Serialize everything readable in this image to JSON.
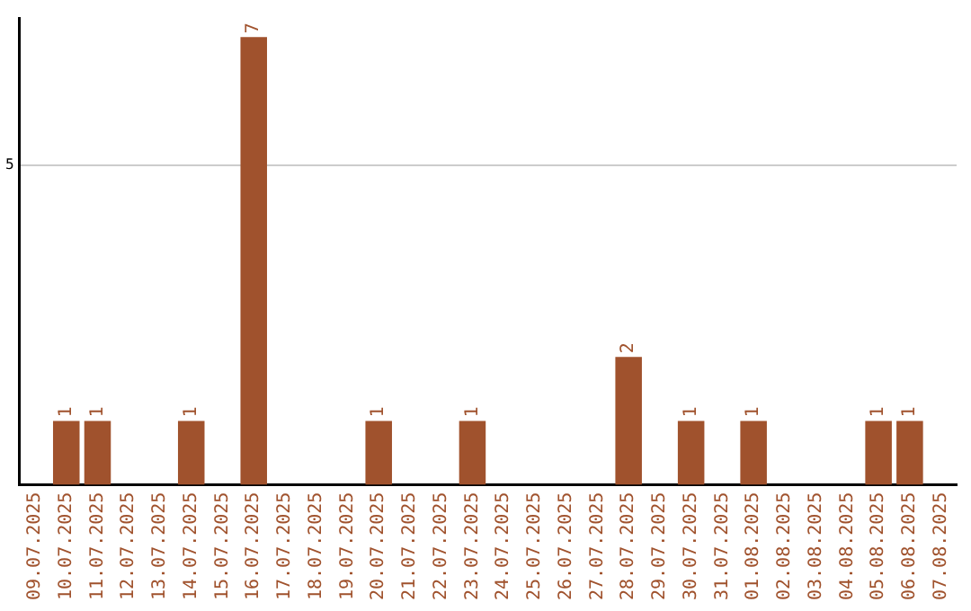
{
  "chart_data": {
    "type": "bar",
    "categories": [
      "09.07.2025",
      "10.07.2025",
      "11.07.2025",
      "12.07.2025",
      "13.07.2025",
      "14.07.2025",
      "15.07.2025",
      "16.07.2025",
      "17.07.2025",
      "18.07.2025",
      "19.07.2025",
      "20.07.2025",
      "21.07.2025",
      "22.07.2025",
      "23.07.2025",
      "24.07.2025",
      "25.07.2025",
      "26.07.2025",
      "27.07.2025",
      "28.07.2025",
      "29.07.2025",
      "30.07.2025",
      "31.07.2025",
      "01.08.2025",
      "02.08.2025",
      "03.08.2025",
      "04.08.2025",
      "05.08.2025",
      "06.08.2025",
      "07.08.2025"
    ],
    "values": [
      0,
      1,
      1,
      0,
      0,
      1,
      0,
      7,
      0,
      0,
      0,
      1,
      0,
      0,
      1,
      0,
      0,
      0,
      0,
      2,
      0,
      1,
      0,
      1,
      0,
      0,
      0,
      1,
      1,
      0
    ],
    "value_labels": [
      null,
      "1",
      "1",
      null,
      null,
      "1",
      null,
      "7",
      null,
      null,
      null,
      "1",
      null,
      null,
      "1",
      null,
      null,
      null,
      null,
      "2",
      null,
      "1",
      null,
      "1",
      null,
      null,
      null,
      "1",
      "1",
      null
    ],
    "color": "#a0522d",
    "ylim": [
      0,
      7.3
    ],
    "yticks": [
      5
    ],
    "grid": "y",
    "legend": false
  }
}
